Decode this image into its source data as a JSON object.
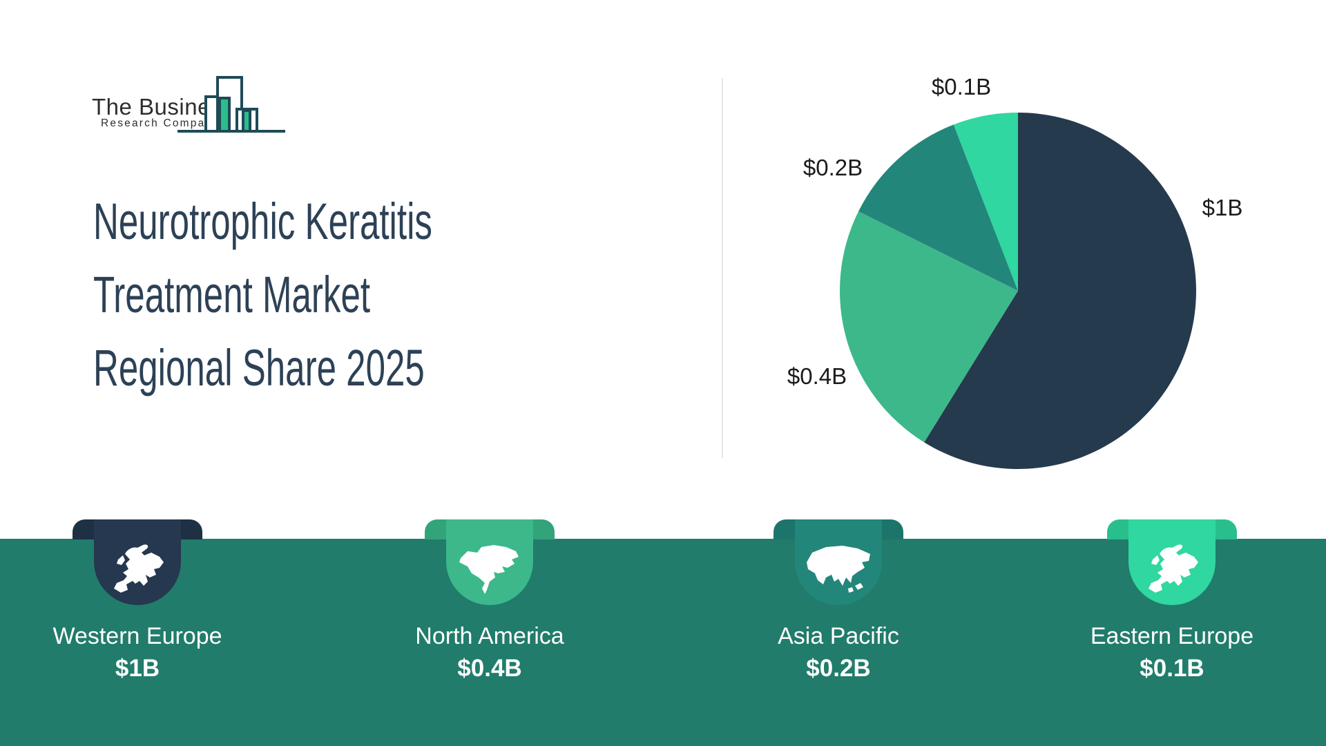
{
  "brand": {
    "line1": "The Business",
    "line2": "Research Company"
  },
  "title": {
    "lines": [
      "Neurotrophic Keratitis",
      "Treatment Market",
      "Regional Share 2025"
    ]
  },
  "chart_data": {
    "type": "pie",
    "title": "Neurotrophic Keratitis Treatment Market Regional Share 2025",
    "unit": "USD billions",
    "categories": [
      "Western Europe",
      "North America",
      "Asia Pacific",
      "Eastern Europe"
    ],
    "values": [
      1,
      0.4,
      0.2,
      0.1
    ],
    "value_labels": [
      "$1B",
      "$0.4B",
      "$0.2B",
      "$0.1B"
    ],
    "colors": [
      "#263a4e",
      "#3cb88a",
      "#23867a",
      "#30d7a0"
    ],
    "start_angle_deg": 0,
    "direction": "clockwise",
    "legend": "none"
  },
  "cards": [
    {
      "region": "Western Europe",
      "value": "$1B",
      "map": "europe",
      "front_color": "#253850",
      "shoulder_color": "#1d3044"
    },
    {
      "region": "North America",
      "value": "$0.4B",
      "map": "north-america",
      "front_color": "#3cb88a",
      "shoulder_color": "#33a37a"
    },
    {
      "region": "Asia Pacific",
      "value": "$0.2B",
      "map": "asia",
      "front_color": "#23867a",
      "shoulder_color": "#1c746a"
    },
    {
      "region": "Eastern Europe",
      "value": "$0.1B",
      "map": "europe",
      "front_color": "#30d7a0",
      "shoulder_color": "#29bf8d"
    }
  ],
  "colors": {
    "band": "#217c6b",
    "divider": "#e6e6ec",
    "title_text": "#2d4156",
    "pie_label_text": "#1b1b1b",
    "card_text": "#ffffff",
    "logo_outline": "#1f4a57",
    "logo_fill": "#2dbd8d"
  }
}
